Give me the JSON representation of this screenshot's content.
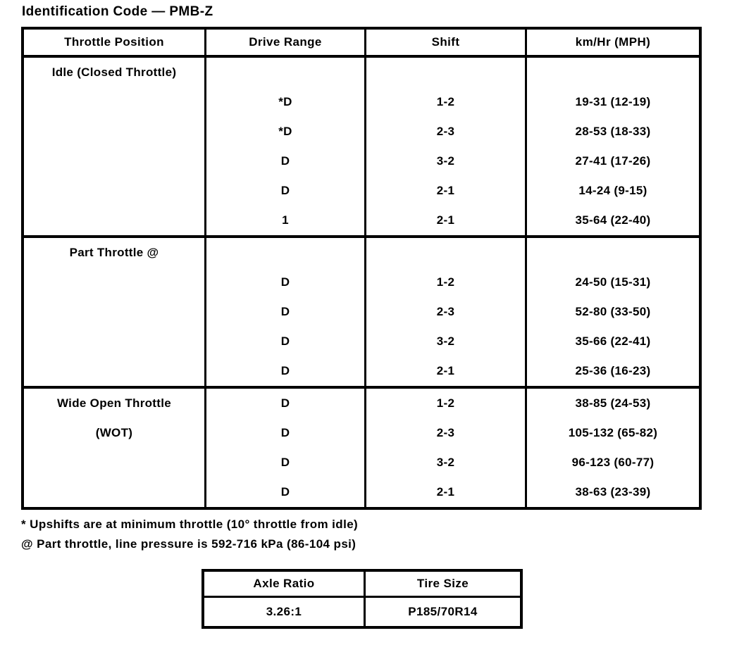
{
  "page": {
    "title": "Identification Code — PMB-Z"
  },
  "main_table": {
    "headers": [
      "Throttle Position",
      "Drive Range",
      "Shift",
      "km/Hr (MPH)"
    ],
    "sections": [
      {
        "throttle_position": "Idle (Closed Throttle)",
        "rows": [
          [
            "Idle (Closed Throttle)",
            "",
            "",
            ""
          ],
          [
            "",
            "*D",
            "1-2",
            "19-31 (12-19)"
          ],
          [
            "",
            "*D",
            "2-3",
            "28-53 (18-33)"
          ],
          [
            "",
            "D",
            "3-2",
            "27-41 (17-26)"
          ],
          [
            "",
            "D",
            "2-1",
            "14-24 (9-15)"
          ],
          [
            "",
            "1",
            "2-1",
            "35-64 (22-40)"
          ]
        ]
      },
      {
        "throttle_position": "Part Throttle @",
        "rows": [
          [
            "Part Throttle @",
            "",
            "",
            ""
          ],
          [
            "",
            "D",
            "1-2",
            "24-50 (15-31)"
          ],
          [
            "",
            "D",
            "2-3",
            "52-80 (33-50)"
          ],
          [
            "",
            "D",
            "3-2",
            "35-66 (22-41)"
          ],
          [
            "",
            "D",
            "2-1",
            "25-36 (16-23)"
          ]
        ]
      },
      {
        "throttle_position": "Wide Open Throttle (WOT)",
        "rows": [
          [
            "Wide Open Throttle",
            "D",
            "1-2",
            "38-85 (24-53)"
          ],
          [
            "(WOT)",
            "D",
            "2-3",
            "105-132 (65-82)"
          ],
          [
            "",
            "D",
            "3-2",
            "96-123 (60-77)"
          ],
          [
            "",
            "D",
            "2-1",
            "38-63 (23-39)"
          ]
        ]
      }
    ]
  },
  "footnotes": [
    "* Upshifts are at minimum throttle (10° throttle from idle)",
    "@ Part throttle, line pressure is 592-716 kPa (86-104 psi)"
  ],
  "spec_table": {
    "headers": [
      "Axle Ratio",
      "Tire Size"
    ],
    "values": [
      "3.26:1",
      "P185/70R14"
    ]
  },
  "colors": {
    "ink": "#000000",
    "paper": "#ffffff"
  }
}
